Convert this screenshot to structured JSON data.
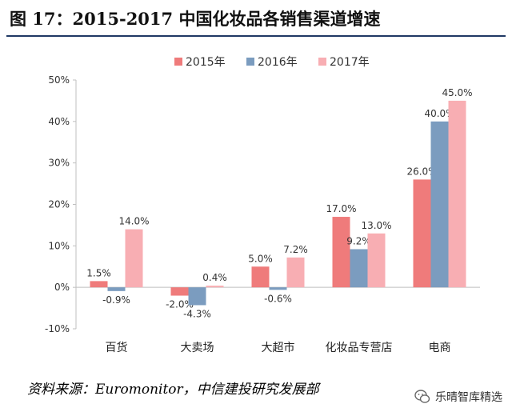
{
  "figure": {
    "title": "图 17：2015-2017 中国化妆品各销售渠道增速",
    "source": "资料来源：Euromonitor，中信建投研究发展部",
    "watermark": "乐晴智库精选"
  },
  "chart_data": {
    "type": "bar",
    "categories": [
      "百货",
      "大卖场",
      "大超市",
      "化妆品专营店",
      "电商"
    ],
    "series": [
      {
        "name": "2015年",
        "color": "#ef7b7b",
        "values": [
          1.5,
          -2.0,
          5.0,
          17.0,
          26.0
        ],
        "labels": [
          "1.5%",
          "-2.0%",
          "5.0%",
          "17.0%",
          "26.0%"
        ]
      },
      {
        "name": "2016年",
        "color": "#7b9cbf",
        "values": [
          -0.9,
          -4.3,
          -0.6,
          9.2,
          40.0
        ],
        "labels": [
          "-0.9%",
          "-4.3%",
          "-0.6%",
          "9.2%",
          "40.0%"
        ]
      },
      {
        "name": "2017年",
        "color": "#f8aeb3",
        "values": [
          14.0,
          0.4,
          7.2,
          13.0,
          45.0
        ],
        "labels": [
          "14.0%",
          "0.4%",
          "7.2%",
          "13.0%",
          "45.0%"
        ]
      }
    ],
    "yticks": [
      50,
      40,
      30,
      20,
      10,
      0,
      -10
    ],
    "ytick_labels": [
      "50%",
      "40%",
      "30%",
      "20%",
      "10%",
      "0%",
      "-10%"
    ],
    "ylim": [
      -10,
      50
    ],
    "legend_position": "top-center",
    "grid": false
  }
}
